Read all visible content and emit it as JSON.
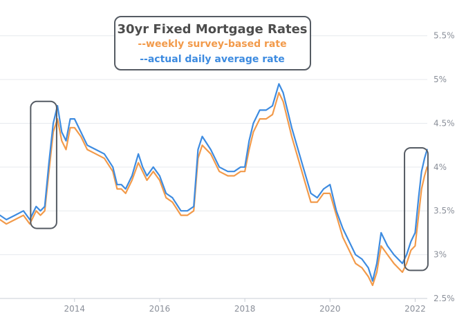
{
  "chart_data": {
    "type": "line",
    "title": "30yr Fixed Mortgage Rates",
    "xlabel": "",
    "ylabel": "",
    "xlim": [
      2012.25,
      2022.35
    ],
    "ylim": [
      2.5,
      5.75
    ],
    "x_ticks": [
      {
        "value": 2014,
        "label": "2014"
      },
      {
        "value": 2016,
        "label": "2016"
      },
      {
        "value": 2018,
        "label": "2018"
      },
      {
        "value": 2020,
        "label": "2020"
      },
      {
        "value": 2022,
        "label": "2022"
      }
    ],
    "y_ticks": [
      {
        "value": 2.5,
        "label": "2.5%"
      },
      {
        "value": 3.0,
        "label": "3%"
      },
      {
        "value": 3.5,
        "label": "3.5%"
      },
      {
        "value": 4.0,
        "label": "4%"
      },
      {
        "value": 4.5,
        "label": "4.5%"
      },
      {
        "value": 5.0,
        "label": "5%"
      },
      {
        "value": 5.5,
        "label": "5.5%"
      }
    ],
    "grid": "horizontal",
    "legend": "top-center",
    "highlights": [
      {
        "x": [
          2012.97,
          2013.58
        ],
        "y": [
          3.3,
          4.75
        ]
      },
      {
        "x": [
          2021.75,
          2022.3
        ],
        "y": [
          2.82,
          4.22
        ]
      }
    ],
    "series": [
      {
        "name": "--weekly survey-based rate",
        "color": "#f29a4a",
        "x": [
          2012.25,
          2012.4,
          2012.6,
          2012.8,
          2012.95,
          2013.1,
          2013.2,
          2013.3,
          2013.4,
          2013.5,
          2013.6,
          2013.7,
          2013.8,
          2013.9,
          2014.0,
          2014.15,
          2014.3,
          2014.5,
          2014.7,
          2014.9,
          2015.0,
          2015.1,
          2015.2,
          2015.35,
          2015.5,
          2015.6,
          2015.7,
          2015.85,
          2016.0,
          2016.15,
          2016.3,
          2016.5,
          2016.65,
          2016.8,
          2016.9,
          2017.0,
          2017.2,
          2017.4,
          2017.6,
          2017.75,
          2017.9,
          2018.0,
          2018.1,
          2018.2,
          2018.35,
          2018.5,
          2018.65,
          2018.8,
          2018.9,
          2019.0,
          2019.1,
          2019.25,
          2019.4,
          2019.55,
          2019.7,
          2019.85,
          2020.0,
          2020.15,
          2020.3,
          2020.45,
          2020.6,
          2020.75,
          2020.9,
          2021.0,
          2021.1,
          2021.2,
          2021.35,
          2021.5,
          2021.6,
          2021.7,
          2021.8,
          2021.9,
          2022.0,
          2022.08,
          2022.15,
          2022.22,
          2022.28
        ],
        "values": [
          3.4,
          3.35,
          3.4,
          3.45,
          3.35,
          3.5,
          3.45,
          3.5,
          3.95,
          4.4,
          4.55,
          4.3,
          4.2,
          4.45,
          4.45,
          4.35,
          4.2,
          4.15,
          4.1,
          3.95,
          3.75,
          3.75,
          3.7,
          3.85,
          4.05,
          3.95,
          3.85,
          3.95,
          3.85,
          3.65,
          3.6,
          3.45,
          3.45,
          3.5,
          4.1,
          4.25,
          4.15,
          3.95,
          3.9,
          3.9,
          3.95,
          3.95,
          4.2,
          4.4,
          4.55,
          4.55,
          4.6,
          4.85,
          4.75,
          4.55,
          4.35,
          4.1,
          3.85,
          3.6,
          3.6,
          3.7,
          3.7,
          3.45,
          3.2,
          3.05,
          2.9,
          2.85,
          2.75,
          2.65,
          2.8,
          3.1,
          3.0,
          2.9,
          2.85,
          2.8,
          2.9,
          3.05,
          3.1,
          3.45,
          3.75,
          3.9,
          4.0
        ]
      },
      {
        "name": "--actual daily average rate",
        "color": "#3d8be0",
        "x": [
          2012.25,
          2012.4,
          2012.6,
          2012.8,
          2012.95,
          2013.1,
          2013.2,
          2013.3,
          2013.4,
          2013.5,
          2013.6,
          2013.7,
          2013.8,
          2013.9,
          2014.0,
          2014.15,
          2014.3,
          2014.5,
          2014.7,
          2014.9,
          2015.0,
          2015.1,
          2015.2,
          2015.35,
          2015.5,
          2015.6,
          2015.7,
          2015.85,
          2016.0,
          2016.15,
          2016.3,
          2016.5,
          2016.65,
          2016.8,
          2016.9,
          2017.0,
          2017.2,
          2017.4,
          2017.6,
          2017.75,
          2017.9,
          2018.0,
          2018.1,
          2018.2,
          2018.35,
          2018.5,
          2018.65,
          2018.8,
          2018.9,
          2019.0,
          2019.1,
          2019.25,
          2019.4,
          2019.55,
          2019.7,
          2019.85,
          2020.0,
          2020.15,
          2020.3,
          2020.45,
          2020.6,
          2020.75,
          2020.9,
          2021.0,
          2021.1,
          2021.2,
          2021.35,
          2021.5,
          2021.6,
          2021.7,
          2021.8,
          2021.9,
          2022.0,
          2022.08,
          2022.15,
          2022.22,
          2022.28
        ],
        "values": [
          3.45,
          3.4,
          3.45,
          3.5,
          3.4,
          3.55,
          3.5,
          3.55,
          4.05,
          4.5,
          4.7,
          4.4,
          4.3,
          4.55,
          4.55,
          4.4,
          4.25,
          4.2,
          4.15,
          4.0,
          3.8,
          3.8,
          3.75,
          3.9,
          4.15,
          4.0,
          3.9,
          4.0,
          3.9,
          3.7,
          3.65,
          3.5,
          3.5,
          3.55,
          4.2,
          4.35,
          4.2,
          4.0,
          3.95,
          3.95,
          4.0,
          4.0,
          4.3,
          4.5,
          4.65,
          4.65,
          4.7,
          4.95,
          4.85,
          4.65,
          4.45,
          4.2,
          3.95,
          3.7,
          3.65,
          3.75,
          3.8,
          3.5,
          3.3,
          3.15,
          3.0,
          2.95,
          2.85,
          2.7,
          2.9,
          3.25,
          3.1,
          3.0,
          2.95,
          2.9,
          3.0,
          3.15,
          3.25,
          3.65,
          3.95,
          4.1,
          4.2
        ]
      }
    ]
  }
}
